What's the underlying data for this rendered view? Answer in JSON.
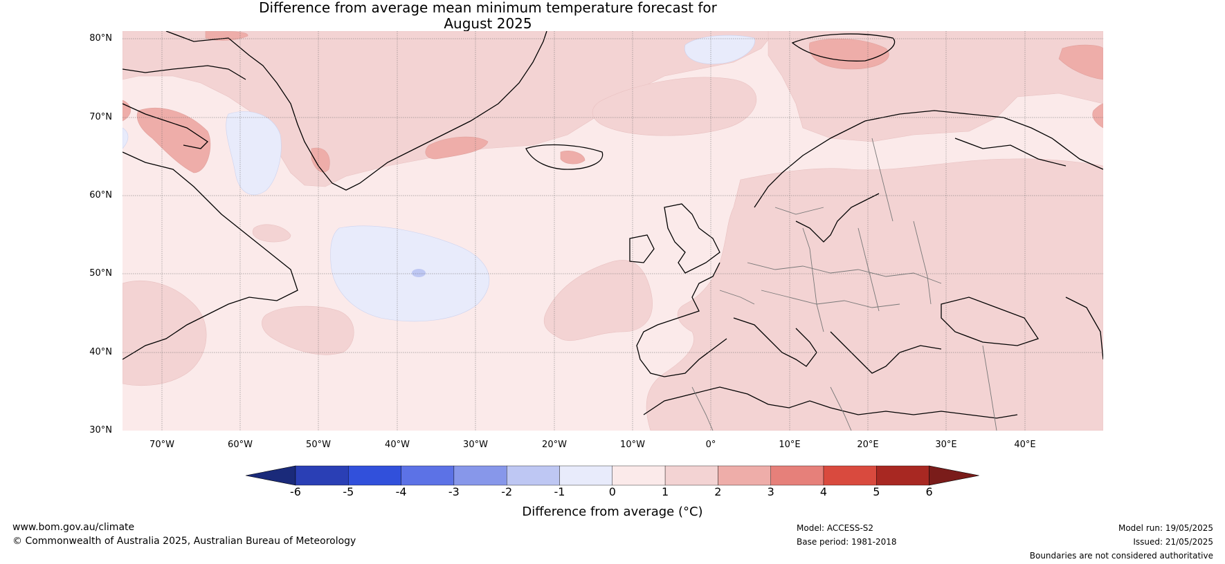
{
  "title": {
    "line1": "Difference from average mean minimum temperature forecast for",
    "line2": "August 2025"
  },
  "map": {
    "lat_labels": [
      "80°N",
      "70°N",
      "60°N",
      "50°N",
      "40°N",
      "30°N"
    ],
    "lon_labels": [
      "70°W",
      "60°W",
      "50°W",
      "40°W",
      "30°W",
      "20°W",
      "10°W",
      "0°",
      "10°E",
      "20°E",
      "30°E",
      "40°E"
    ],
    "extent": {
      "lon": [
        -75,
        50
      ],
      "lat": [
        30,
        81
      ]
    },
    "gridlines": true
  },
  "colorbar": {
    "ticks": [
      "-6",
      "-5",
      "-4",
      "-3",
      "-2",
      "-1",
      "0",
      "1",
      "2",
      "3",
      "4",
      "5",
      "6"
    ],
    "colors": [
      "#1a2a7a",
      "#2a3fb5",
      "#3150db",
      "#5c72e6",
      "#8797ea",
      "#bec7f3",
      "#e8ebfb",
      "#fbeaea",
      "#f3d3d3",
      "#eeada9",
      "#e6807a",
      "#d94a3e",
      "#a82822",
      "#7a1c1a"
    ],
    "label": "Difference from average (°C)"
  },
  "footer": {
    "url": "www.bom.gov.au/climate",
    "copyright": "© Commonwealth of Australia 2025, Australian Bureau of Meteorology",
    "model": "Model: ACCESS-S2",
    "base_period": "Base period: 1981-2018",
    "model_run": "Model run: 19/05/2025",
    "issued": "Issued: 21/05/2025",
    "disclaimer": "Boundaries are not considered authoritative"
  }
}
